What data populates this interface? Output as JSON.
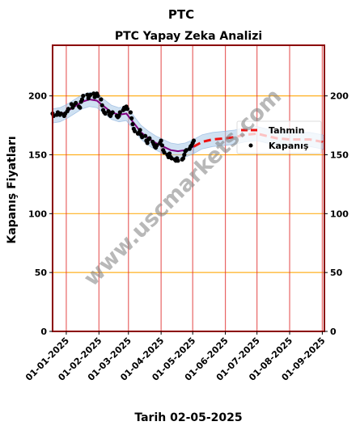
{
  "chart_data": {
    "type": "line",
    "title": "PTC",
    "subtitle": "PTC Yapay Zeka Analizi",
    "xlabel": "Tarih 02-05-2025",
    "ylabel": "Kapanış Fiyatları",
    "ylim": [
      0,
      243
    ],
    "yticks": [
      0,
      50,
      100,
      150,
      200
    ],
    "xlim": [
      "2024-12-19",
      "2025-09-03"
    ],
    "xticks": [
      "2025-01-01",
      "2025-02-01",
      "2025-03-01",
      "2025-04-01",
      "2025-05-01",
      "2025-06-01",
      "2025-07-01",
      "2025-08-01",
      "2025-09-01"
    ],
    "xtick_labels": [
      "01-01-2025",
      "01-02-2025",
      "01-03-2025",
      "01-04-2025",
      "01-05-2025",
      "01-06-2025",
      "01-07-2025",
      "01-08-2025",
      "01-09-2025"
    ],
    "grid": true,
    "legend_position": "center-right",
    "colors": {
      "kapanis": "#000000",
      "trend": "#800080",
      "band": "#a8c8e8",
      "tahmin": "#ee1111",
      "hgrid": "#ffb020",
      "vgrid": "#e03030",
      "frame": "#8b0000"
    },
    "series": [
      {
        "name": "Kapanış",
        "style": "scatter",
        "points": [
          [
            "2024-12-19",
            185
          ],
          [
            "2024-12-20",
            183
          ],
          [
            "2024-12-23",
            184
          ],
          [
            "2024-12-24",
            186
          ],
          [
            "2024-12-26",
            184
          ],
          [
            "2024-12-27",
            185
          ],
          [
            "2024-12-30",
            183
          ],
          [
            "2024-12-31",
            185
          ],
          [
            "2025-01-02",
            187
          ],
          [
            "2025-01-03",
            189
          ],
          [
            "2025-01-06",
            193
          ],
          [
            "2025-01-07",
            190
          ],
          [
            "2025-01-08",
            192
          ],
          [
            "2025-01-10",
            194
          ],
          [
            "2025-01-13",
            191
          ],
          [
            "2025-01-14",
            190
          ],
          [
            "2025-01-15",
            195
          ],
          [
            "2025-01-16",
            197
          ],
          [
            "2025-01-17",
            200
          ],
          [
            "2025-01-21",
            201
          ],
          [
            "2025-01-22",
            198
          ],
          [
            "2025-01-23",
            200
          ],
          [
            "2025-01-24",
            201
          ],
          [
            "2025-01-27",
            202
          ],
          [
            "2025-01-28",
            199
          ],
          [
            "2025-01-29",
            200
          ],
          [
            "2025-01-30",
            202
          ],
          [
            "2025-01-31",
            200
          ],
          [
            "2025-02-03",
            197
          ],
          [
            "2025-02-04",
            192
          ],
          [
            "2025-02-05",
            188
          ],
          [
            "2025-02-06",
            186
          ],
          [
            "2025-02-07",
            185
          ],
          [
            "2025-02-10",
            187
          ],
          [
            "2025-02-11",
            184
          ],
          [
            "2025-02-12",
            183
          ],
          [
            "2025-02-13",
            185
          ],
          [
            "2025-02-14",
            186
          ],
          [
            "2025-02-18",
            183
          ],
          [
            "2025-02-19",
            182
          ],
          [
            "2025-02-20",
            183
          ],
          [
            "2025-02-21",
            186
          ],
          [
            "2025-02-24",
            188
          ],
          [
            "2025-02-25",
            190
          ],
          [
            "2025-02-26",
            189
          ],
          [
            "2025-02-27",
            191
          ],
          [
            "2025-02-28",
            189
          ],
          [
            "2025-03-03",
            186
          ],
          [
            "2025-03-04",
            181
          ],
          [
            "2025-03-05",
            176
          ],
          [
            "2025-03-06",
            172
          ],
          [
            "2025-03-07",
            170
          ],
          [
            "2025-03-10",
            168
          ],
          [
            "2025-03-11",
            169
          ],
          [
            "2025-03-12",
            171
          ],
          [
            "2025-03-13",
            167
          ],
          [
            "2025-03-14",
            165
          ],
          [
            "2025-03-17",
            166
          ],
          [
            "2025-03-18",
            162
          ],
          [
            "2025-03-19",
            160
          ],
          [
            "2025-03-20",
            163
          ],
          [
            "2025-03-21",
            164
          ],
          [
            "2025-03-24",
            161
          ],
          [
            "2025-03-25",
            159
          ],
          [
            "2025-03-26",
            157
          ],
          [
            "2025-03-27",
            156
          ],
          [
            "2025-03-28",
            158
          ],
          [
            "2025-03-31",
            160
          ],
          [
            "2025-04-01",
            162
          ],
          [
            "2025-04-02",
            158
          ],
          [
            "2025-04-03",
            154
          ],
          [
            "2025-04-04",
            152
          ],
          [
            "2025-04-07",
            150
          ],
          [
            "2025-04-08",
            148
          ],
          [
            "2025-04-09",
            151
          ],
          [
            "2025-04-10",
            148
          ],
          [
            "2025-04-11",
            147
          ],
          [
            "2025-04-14",
            146
          ],
          [
            "2025-04-15",
            145
          ],
          [
            "2025-04-16",
            147
          ],
          [
            "2025-04-17",
            145
          ],
          [
            "2025-04-21",
            146
          ],
          [
            "2025-04-22",
            147
          ],
          [
            "2025-04-23",
            150
          ],
          [
            "2025-04-24",
            153
          ],
          [
            "2025-04-25",
            154
          ],
          [
            "2025-04-28",
            155
          ],
          [
            "2025-04-29",
            157
          ],
          [
            "2025-04-30",
            158
          ],
          [
            "2025-05-01",
            160
          ],
          [
            "2025-05-02",
            162
          ]
        ]
      },
      {
        "name": "trend",
        "style": "line",
        "points": [
          [
            "2024-12-19",
            183
          ],
          [
            "2024-12-26",
            184
          ],
          [
            "2025-01-02",
            187
          ],
          [
            "2025-01-09",
            191
          ],
          [
            "2025-01-16",
            195
          ],
          [
            "2025-01-23",
            197
          ],
          [
            "2025-01-30",
            196
          ],
          [
            "2025-02-06",
            191
          ],
          [
            "2025-02-13",
            186
          ],
          [
            "2025-02-20",
            184
          ],
          [
            "2025-02-27",
            185
          ],
          [
            "2025-03-06",
            177
          ],
          [
            "2025-03-13",
            169
          ],
          [
            "2025-03-20",
            164
          ],
          [
            "2025-03-27",
            160
          ],
          [
            "2025-04-03",
            157
          ],
          [
            "2025-04-10",
            154
          ],
          [
            "2025-04-17",
            153
          ],
          [
            "2025-04-24",
            154
          ],
          [
            "2025-05-02",
            157
          ]
        ]
      },
      {
        "name": "Tahmin",
        "style": "dashed",
        "points": [
          [
            "2025-05-02",
            157
          ],
          [
            "2025-05-10",
            161
          ],
          [
            "2025-05-20",
            163
          ],
          [
            "2025-06-01",
            164
          ],
          [
            "2025-06-10",
            165
          ],
          [
            "2025-06-20",
            167
          ],
          [
            "2025-07-01",
            168
          ],
          [
            "2025-07-10",
            166
          ],
          [
            "2025-07-20",
            164
          ],
          [
            "2025-08-01",
            163
          ],
          [
            "2025-08-10",
            163
          ],
          [
            "2025-08-20",
            163
          ],
          [
            "2025-09-01",
            161
          ],
          [
            "2025-09-03",
            160
          ]
        ]
      }
    ],
    "band": {
      "halfwidth": 6,
      "ranges": [
        [
          "2024-12-19",
          "2025-05-02"
        ],
        [
          "2025-05-02",
          "2025-09-03"
        ]
      ]
    },
    "legend": [
      "Tahmin",
      "Kapanış"
    ],
    "watermark": "www.uscmarkets.com"
  }
}
